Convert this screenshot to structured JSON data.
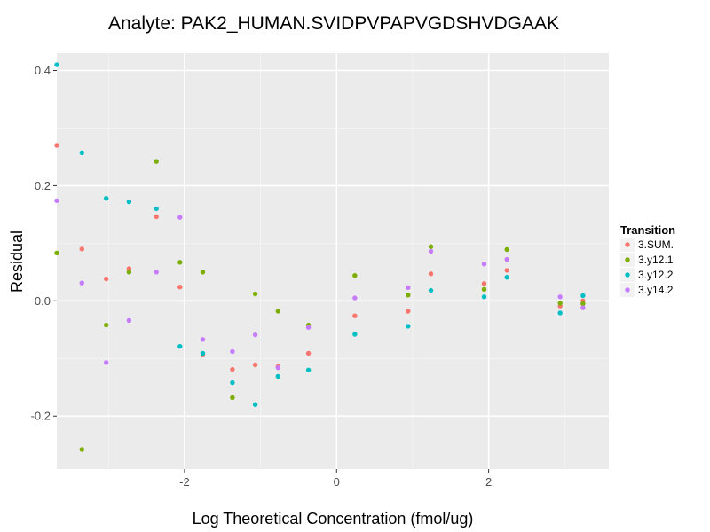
{
  "chart_data": {
    "type": "scatter",
    "title": "Analyte: PAK2_HUMAN.SVIDPVPAPVGDSHVDGAAK",
    "xlabel": "Log Theoretical Concentration (fmol/ug)",
    "ylabel": "Residual",
    "xlim": [
      -3.68,
      3.58
    ],
    "ylim": [
      -0.292,
      0.43
    ],
    "x_ticks": [
      -2,
      0,
      2
    ],
    "x_tick_labels": [
      "-2",
      "0",
      "2"
    ],
    "y_ticks": [
      -0.2,
      0.0,
      0.2,
      0.4
    ],
    "y_tick_labels": [
      "-0.2",
      "0.0",
      "0.2",
      "0.4"
    ],
    "grid": true,
    "legend": {
      "title": "Transition",
      "position": "right"
    },
    "series": [
      {
        "name": "3.SUM.",
        "color": "#F8766D",
        "points": [
          [
            -3.68,
            0.27
          ],
          [
            -3.35,
            0.09
          ],
          [
            -3.03,
            0.038
          ],
          [
            -2.73,
            0.056
          ],
          [
            -2.37,
            0.146
          ],
          [
            -2.06,
            0.024
          ],
          [
            -1.76,
            -0.094
          ],
          [
            -1.37,
            -0.119
          ],
          [
            -1.07,
            -0.111
          ],
          [
            -0.77,
            -0.114
          ],
          [
            -0.37,
            -0.091
          ],
          [
            0.24,
            -0.026
          ],
          [
            0.94,
            -0.018
          ],
          [
            1.24,
            0.047
          ],
          [
            1.94,
            0.03
          ],
          [
            2.24,
            0.053
          ],
          [
            2.94,
            -0.009
          ],
          [
            3.24,
            0.0
          ]
        ]
      },
      {
        "name": "3.y12.1",
        "color": "#7CAE00",
        "points": [
          [
            -3.68,
            0.083
          ],
          [
            -3.35,
            -0.258
          ],
          [
            -3.03,
            -0.042
          ],
          [
            -2.73,
            0.05
          ],
          [
            -2.37,
            0.242
          ],
          [
            -2.06,
            0.067
          ],
          [
            -1.76,
            0.05
          ],
          [
            -1.37,
            -0.168
          ],
          [
            -1.07,
            0.012
          ],
          [
            -0.77,
            -0.018
          ],
          [
            -0.37,
            -0.042
          ],
          [
            0.24,
            0.044
          ],
          [
            0.94,
            0.01
          ],
          [
            1.24,
            0.094
          ],
          [
            1.94,
            0.02
          ],
          [
            2.24,
            0.089
          ],
          [
            2.94,
            -0.004
          ],
          [
            3.24,
            -0.005
          ]
        ]
      },
      {
        "name": "3.y12.2",
        "color": "#00BFC4",
        "points": [
          [
            -3.68,
            0.41
          ],
          [
            -3.35,
            0.257
          ],
          [
            -3.03,
            0.178
          ],
          [
            -2.73,
            0.172
          ],
          [
            -2.37,
            0.16
          ],
          [
            -2.06,
            -0.079
          ],
          [
            -1.76,
            -0.091
          ],
          [
            -1.37,
            -0.142
          ],
          [
            -1.07,
            -0.18
          ],
          [
            -0.77,
            -0.131
          ],
          [
            -0.37,
            -0.12
          ],
          [
            0.24,
            -0.058
          ],
          [
            0.94,
            -0.044
          ],
          [
            1.24,
            0.018
          ],
          [
            1.94,
            0.007
          ],
          [
            2.24,
            0.041
          ],
          [
            2.94,
            -0.021
          ],
          [
            3.24,
            0.009
          ]
        ]
      },
      {
        "name": "3.y14.2",
        "color": "#C77CFF",
        "points": [
          [
            -3.68,
            0.174
          ],
          [
            -3.35,
            0.031
          ],
          [
            -3.03,
            -0.107
          ],
          [
            -2.73,
            -0.034
          ],
          [
            -2.37,
            0.05
          ],
          [
            -2.06,
            0.145
          ],
          [
            -1.76,
            -0.067
          ],
          [
            -1.37,
            -0.088
          ],
          [
            -1.07,
            -0.059
          ],
          [
            -0.77,
            -0.116
          ],
          [
            -0.37,
            -0.046
          ],
          [
            0.24,
            0.005
          ],
          [
            0.94,
            0.023
          ],
          [
            1.24,
            0.086
          ],
          [
            1.94,
            0.064
          ],
          [
            2.24,
            0.072
          ],
          [
            2.94,
            0.007
          ],
          [
            3.24,
            -0.012
          ]
        ]
      }
    ]
  }
}
